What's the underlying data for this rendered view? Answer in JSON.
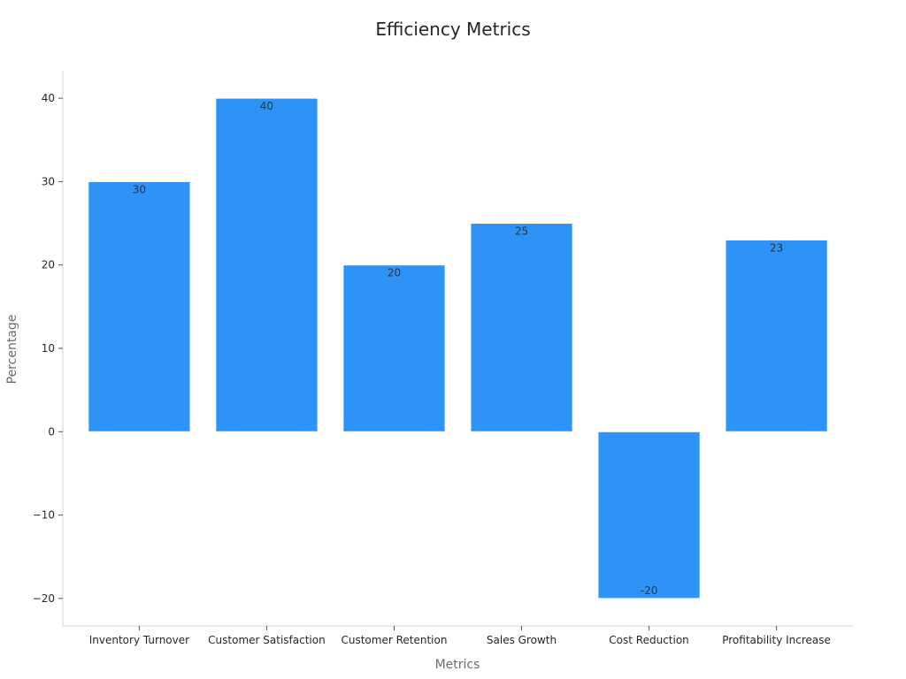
{
  "chart_data": {
    "type": "bar",
    "title": "Efficiency Metrics",
    "xlabel": "Metrics",
    "ylabel": "Percentage",
    "categories": [
      "Inventory Turnover",
      "Customer Satisfaction",
      "Customer Retention",
      "Sales Growth",
      "Cost Reduction",
      "Profitability Increase"
    ],
    "values": [
      30,
      40,
      20,
      25,
      -20,
      23
    ],
    "data_labels": [
      "30",
      "40",
      "20",
      "25",
      "-20",
      "23"
    ],
    "yticks": [
      -20,
      -10,
      0,
      10,
      20,
      30,
      40
    ],
    "ytick_labels": [
      "−20",
      "−10",
      "0",
      "10",
      "20",
      "30",
      "40"
    ],
    "ylim": [
      -23.3,
      43.3
    ],
    "grid": false,
    "legend": "none",
    "colors": {
      "bar": "#2e93f7",
      "bar_edge": "#ffffff",
      "axis": "#d0d0d0",
      "text": "#262626",
      "axis_label": "#6b6b6b"
    }
  }
}
